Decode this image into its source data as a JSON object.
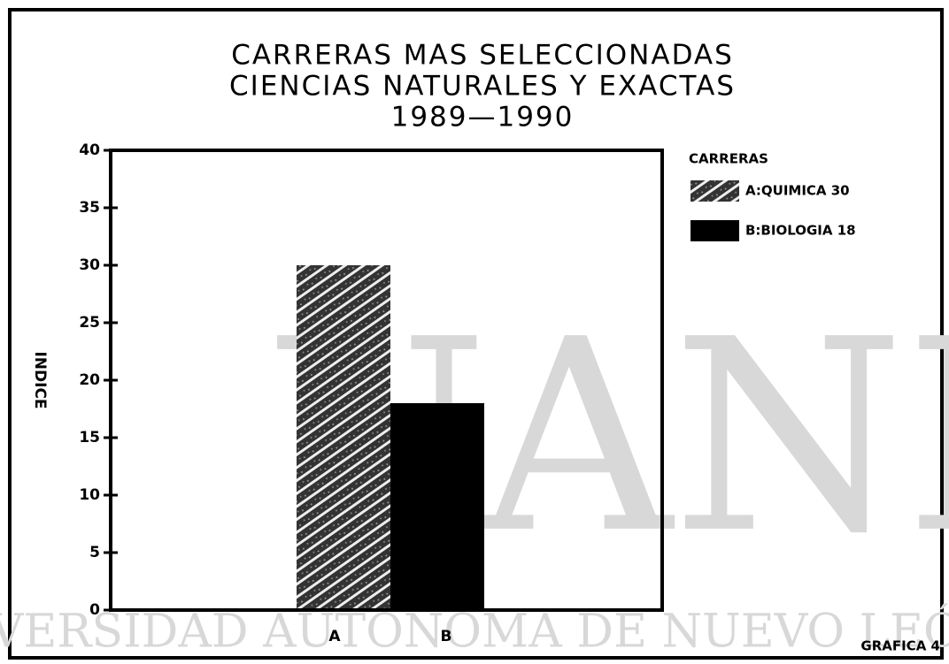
{
  "chart_data": {
    "type": "bar",
    "title": [
      "CARRERAS MAS SELECCIONADAS",
      "CIENCIAS NATURALES Y EXACTAS",
      "1989—1990"
    ],
    "y_label": "INDICE",
    "categories": [
      "A",
      "B"
    ],
    "values": [
      30,
      18
    ],
    "fills": [
      "hatch",
      "solid"
    ],
    "color": "#000000",
    "ylim": [
      0,
      40
    ],
    "yticks": [
      0,
      5,
      10,
      15,
      20,
      25,
      30,
      35,
      40
    ],
    "legend": {
      "title": "CARRERAS",
      "entries": [
        "A:QUIMICA 30",
        "B:BIOLOGIA 18"
      ],
      "position": "right"
    },
    "footer": "GRAFICA 4",
    "watermark": [
      "UANL",
      "VERSIDAD AUTONOMA DE NUEVO LEÓN"
    ]
  }
}
